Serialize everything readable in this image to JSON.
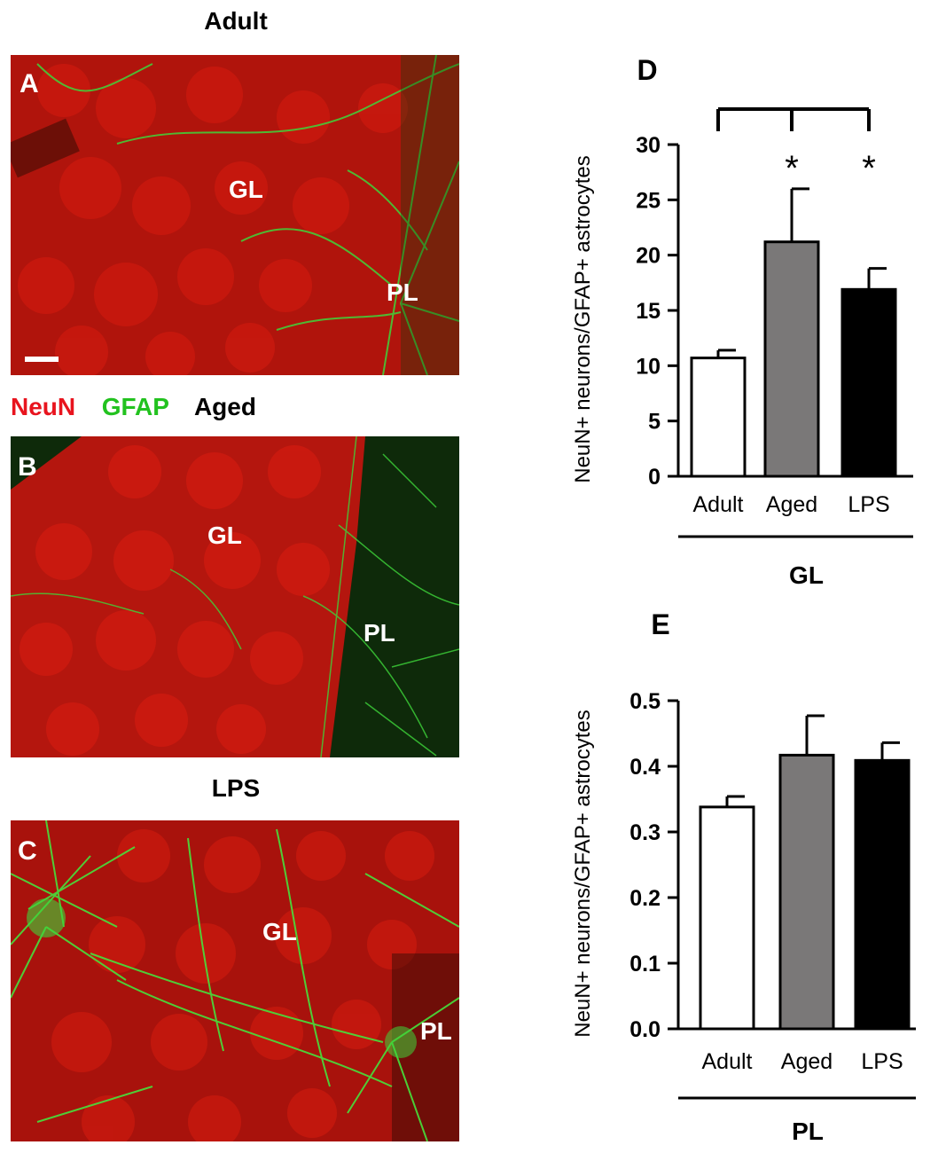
{
  "panels": {
    "A": {
      "letter": "A",
      "title": "Adult",
      "region_labels": [
        "GL",
        "PL"
      ]
    },
    "B": {
      "letter": "B",
      "title": "Aged",
      "region_labels": [
        "GL",
        "PL"
      ]
    },
    "C": {
      "letter": "C",
      "title": "LPS",
      "region_labels": [
        "GL",
        "PL"
      ]
    }
  },
  "legend": {
    "neun": "NeuN",
    "gfap": "GFAP",
    "neun_color": "#e8141e",
    "gfap_color": "#22c21f"
  },
  "chart_data": [
    {
      "panel": "D",
      "type": "bar",
      "categories": [
        "Adult",
        "Aged",
        "LPS"
      ],
      "values": [
        10.7,
        21.2,
        16.9
      ],
      "errors": [
        0.7,
        4.8,
        1.9
      ],
      "bar_colors": [
        "#ffffff",
        "#7a7878",
        "#000000"
      ],
      "ylabel": "NeuN+ neurons/GFAP+ astrocytes",
      "xgroup": "GL",
      "ylim": [
        0,
        30
      ],
      "yticks": [
        "0",
        "5",
        "10",
        "15",
        "20",
        "25",
        "30"
      ],
      "significance": {
        "marks": [
          "",
          "*",
          "*"
        ],
        "bracket_from": "Adult",
        "bracket_to": [
          "Aged",
          "LPS"
        ]
      }
    },
    {
      "panel": "E",
      "type": "bar",
      "categories": [
        "Adult",
        "Aged",
        "LPS"
      ],
      "values": [
        0.338,
        0.417,
        0.409
      ],
      "errors": [
        0.016,
        0.06,
        0.027
      ],
      "bar_colors": [
        "#ffffff",
        "#7a7878",
        "#000000"
      ],
      "ylabel": "NeuN+ neurons/GFAP+ astrocytes",
      "xgroup": "PL",
      "ylim": [
        0,
        0.5
      ],
      "yticks": [
        "0.0",
        "0.1",
        "0.2",
        "0.3",
        "0.4",
        "0.5"
      ]
    }
  ]
}
